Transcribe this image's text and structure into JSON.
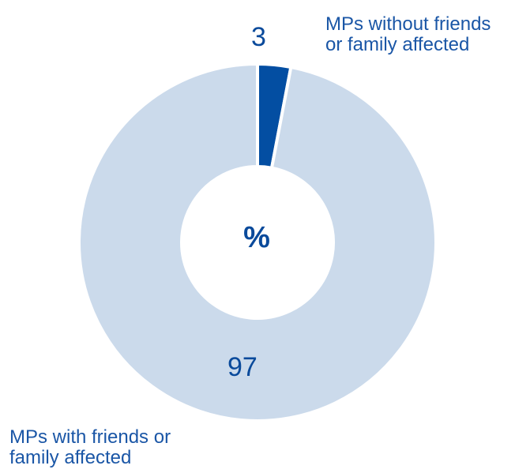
{
  "chart_data": {
    "type": "pie",
    "center_label": "%",
    "slices": [
      {
        "label": "MPs without friends\nor family affected",
        "value": 3,
        "value_label": "3",
        "color": "#034ea2"
      },
      {
        "label": "MPs with friends or\nfamily affected",
        "value": 97,
        "value_label": "97",
        "color": "#cbdaeb"
      }
    ]
  }
}
